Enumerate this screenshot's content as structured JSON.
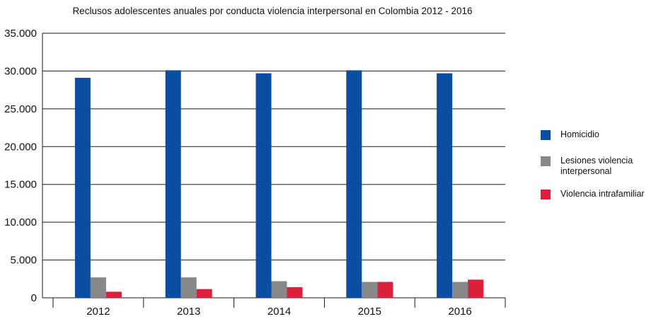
{
  "chart_data": {
    "type": "bar",
    "title": "Reclusos adolescentes anuales por conducta violencia interpersonal en Colombia 2012 - 2016",
    "xlabel": "",
    "ylabel": "",
    "categories": [
      "2012",
      "2013",
      "2014",
      "2015",
      "2016"
    ],
    "series": [
      {
        "name": "Homicidio",
        "color": "#0a4ea2",
        "values": [
          29100,
          30100,
          29700,
          30100,
          29700
        ]
      },
      {
        "name": "Lesiones violencia interpersonal",
        "color": "#87888a",
        "values": [
          2700,
          2700,
          2200,
          2100,
          2100
        ]
      },
      {
        "name": "Violencia intrafamiliar",
        "color": "#dc1f3a",
        "values": [
          800,
          1150,
          1400,
          2100,
          2400
        ]
      }
    ],
    "ylim": [
      0,
      35000
    ],
    "yticks": [
      0,
      5000,
      10000,
      15000,
      20000,
      25000,
      30000,
      35000
    ],
    "ytick_labels": [
      "0",
      "5.000",
      "10.000",
      "15.000",
      "20.000",
      "25.000",
      "30.000",
      "35.000"
    ],
    "grid": true,
    "legend_position": "right"
  }
}
